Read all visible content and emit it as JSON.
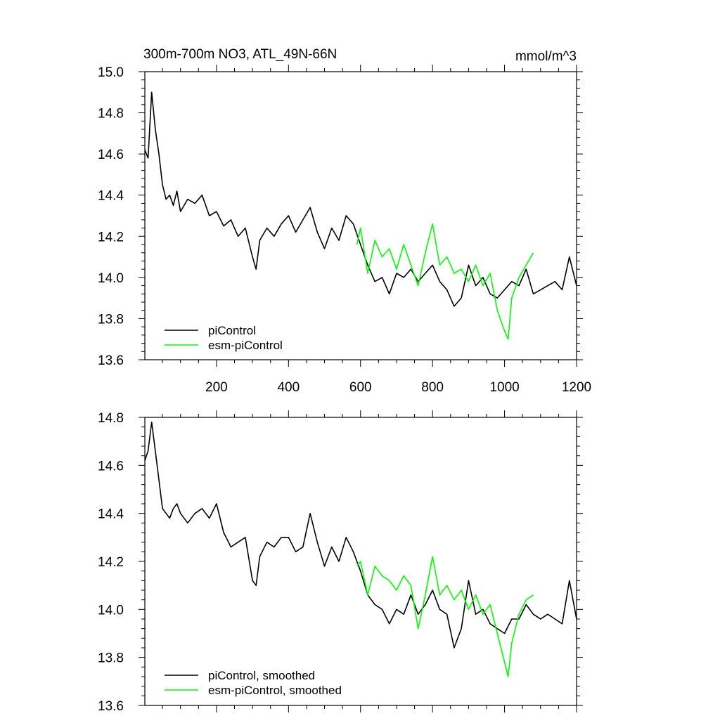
{
  "colors": {
    "background": "#ffffff",
    "axis": "#000000",
    "piControl": "#000000",
    "esm_piControl": "#00ff00"
  },
  "chart_data": [
    {
      "type": "line",
      "title": "300m-700m NO3, ATL_49N-66N",
      "units_label": "mmol/m^3",
      "xlabel": "",
      "ylabel": "",
      "xlim": [
        1,
        1200
      ],
      "ylim": [
        13.6,
        15.0
      ],
      "x_ticks": [
        200,
        400,
        600,
        800,
        1000,
        1200
      ],
      "x_tick_labels": [
        "200",
        "400",
        "600",
        "800",
        "1000",
        "1200"
      ],
      "y_ticks": [
        13.6,
        13.8,
        14.0,
        14.2,
        14.4,
        14.6,
        14.8,
        15.0
      ],
      "y_tick_labels": [
        "13.6",
        "13.8",
        "14.0",
        "14.2",
        "14.4",
        "14.6",
        "14.8",
        "15.0"
      ],
      "grid": false,
      "legend_position": "bottom-left",
      "series": [
        {
          "name": "piControl",
          "color": "#000000",
          "x": [
            1,
            10,
            20,
            30,
            40,
            50,
            60,
            70,
            80,
            90,
            100,
            120,
            140,
            160,
            180,
            200,
            220,
            240,
            260,
            280,
            300,
            310,
            320,
            340,
            360,
            380,
            400,
            420,
            440,
            460,
            480,
            500,
            520,
            540,
            560,
            580,
            600,
            620,
            640,
            660,
            680,
            700,
            720,
            740,
            760,
            780,
            800,
            820,
            840,
            860,
            880,
            900,
            920,
            940,
            960,
            980,
            1000,
            1020,
            1040,
            1060,
            1080,
            1100,
            1120,
            1140,
            1160,
            1180,
            1200
          ],
          "y": [
            14.62,
            14.58,
            14.9,
            14.72,
            14.6,
            14.45,
            14.38,
            14.4,
            14.35,
            14.42,
            14.32,
            14.38,
            14.36,
            14.4,
            14.3,
            14.32,
            14.25,
            14.28,
            14.2,
            14.24,
            14.1,
            14.04,
            14.18,
            14.24,
            14.2,
            14.26,
            14.3,
            14.22,
            14.28,
            14.34,
            14.22,
            14.14,
            14.24,
            14.18,
            14.3,
            14.26,
            14.16,
            14.06,
            13.98,
            14.0,
            13.92,
            14.02,
            14.0,
            14.04,
            13.98,
            14.02,
            14.06,
            13.98,
            13.94,
            13.86,
            13.9,
            14.06,
            13.96,
            14.0,
            13.92,
            13.9,
            13.94,
            13.98,
            13.96,
            14.04,
            13.92,
            13.94,
            13.96,
            13.98,
            13.94,
            14.1,
            13.96
          ]
        },
        {
          "name": "esm-piControl",
          "color": "#00ff00",
          "x": [
            590,
            600,
            620,
            640,
            660,
            680,
            700,
            720,
            740,
            760,
            780,
            800,
            820,
            840,
            860,
            880,
            900,
            920,
            940,
            960,
            980,
            1000,
            1010,
            1020,
            1040,
            1060,
            1080
          ],
          "y": [
            14.16,
            14.24,
            14.02,
            14.18,
            14.1,
            14.14,
            14.04,
            14.16,
            14.06,
            13.96,
            14.12,
            14.26,
            14.06,
            14.1,
            14.02,
            14.04,
            13.98,
            14.06,
            13.96,
            14.02,
            13.84,
            13.74,
            13.7,
            13.9,
            14.0,
            14.06,
            14.12
          ]
        }
      ]
    },
    {
      "type": "line",
      "title": "",
      "xlabel": "",
      "ylabel": "",
      "xlim": [
        1,
        1200
      ],
      "ylim": [
        13.6,
        14.8
      ],
      "x_ticks": [
        200,
        400,
        600,
        800,
        1000,
        1200
      ],
      "x_tick_labels": [],
      "y_ticks": [
        13.6,
        13.8,
        14.0,
        14.2,
        14.4,
        14.6,
        14.8
      ],
      "y_tick_labels": [
        "13.6",
        "13.8",
        "14.0",
        "14.2",
        "14.4",
        "14.6",
        "14.8"
      ],
      "grid": false,
      "legend_position": "bottom-left",
      "series": [
        {
          "name": "piControl, smoothed",
          "color": "#000000",
          "x": [
            1,
            10,
            20,
            30,
            40,
            50,
            60,
            70,
            80,
            90,
            100,
            120,
            140,
            160,
            180,
            200,
            220,
            240,
            260,
            280,
            300,
            310,
            320,
            340,
            360,
            380,
            400,
            420,
            440,
            460,
            480,
            500,
            520,
            540,
            560,
            580,
            600,
            620,
            640,
            660,
            680,
            700,
            720,
            740,
            760,
            780,
            800,
            820,
            840,
            860,
            880,
            900,
            920,
            940,
            960,
            980,
            1000,
            1020,
            1040,
            1060,
            1080,
            1100,
            1120,
            1140,
            1160,
            1180,
            1200
          ],
          "y": [
            14.62,
            14.66,
            14.78,
            14.66,
            14.54,
            14.42,
            14.4,
            14.38,
            14.42,
            14.44,
            14.4,
            14.36,
            14.4,
            14.42,
            14.38,
            14.44,
            14.32,
            14.26,
            14.28,
            14.3,
            14.12,
            14.1,
            14.22,
            14.28,
            14.26,
            14.3,
            14.3,
            14.24,
            14.26,
            14.4,
            14.28,
            14.18,
            14.26,
            14.2,
            14.3,
            14.24,
            14.16,
            14.06,
            14.02,
            14.0,
            13.94,
            14.0,
            13.98,
            14.06,
            13.98,
            14.02,
            14.08,
            14.0,
            13.98,
            13.84,
            13.92,
            14.12,
            13.98,
            14.0,
            13.94,
            13.92,
            13.9,
            13.96,
            13.96,
            14.02,
            13.98,
            13.96,
            13.98,
            13.96,
            13.94,
            14.12,
            13.96
          ]
        },
        {
          "name": "esm-piControl, smoothed",
          "color": "#00ff00",
          "x": [
            590,
            600,
            620,
            640,
            660,
            680,
            700,
            720,
            740,
            760,
            780,
            800,
            820,
            840,
            860,
            880,
            900,
            920,
            940,
            960,
            980,
            1000,
            1010,
            1020,
            1040,
            1060,
            1080
          ],
          "y": [
            14.18,
            14.2,
            14.06,
            14.18,
            14.14,
            14.12,
            14.08,
            14.14,
            14.1,
            13.92,
            14.06,
            14.22,
            14.06,
            14.1,
            14.04,
            14.08,
            14.0,
            14.06,
            13.98,
            14.02,
            13.9,
            13.78,
            13.72,
            13.86,
            13.98,
            14.04,
            14.06
          ]
        }
      ]
    }
  ]
}
